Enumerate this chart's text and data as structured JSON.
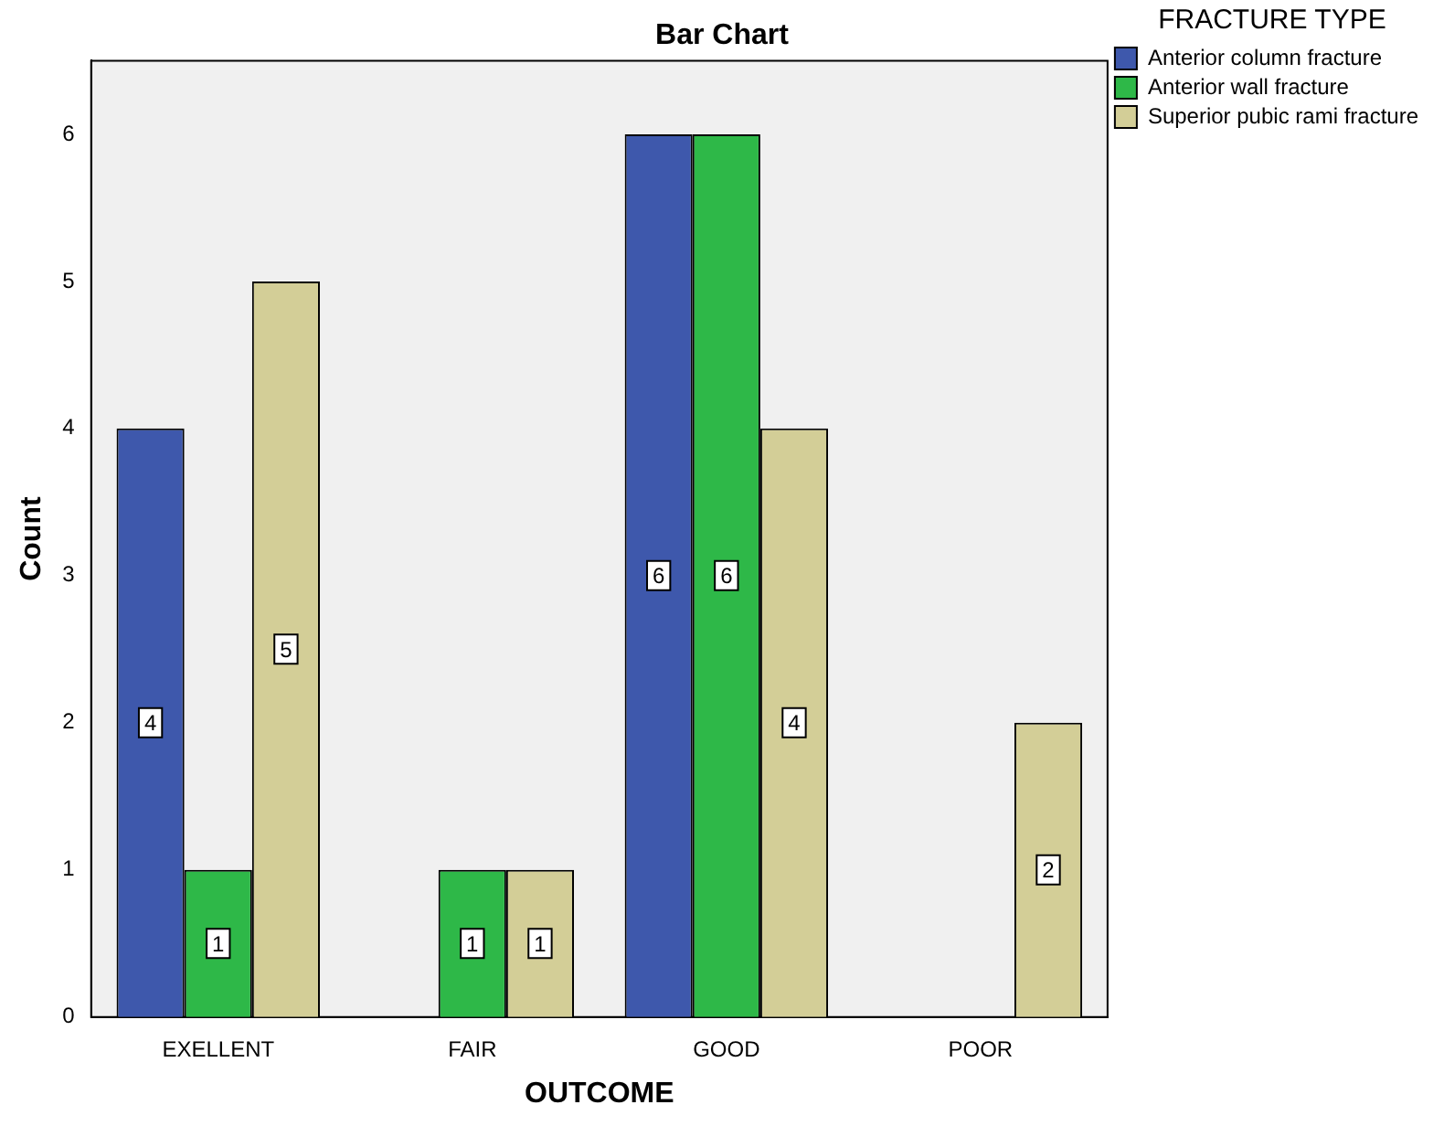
{
  "chart_data": {
    "type": "bar",
    "title": "Bar Chart",
    "xlabel": "OUTCOME",
    "ylabel": "Count",
    "legend_title": "FRACTURE TYPE",
    "categories": [
      "EXELLENT",
      "FAIR",
      "GOOD",
      "POOR"
    ],
    "series": [
      {
        "name": "Anterior column fracture",
        "color": "#3e58ac",
        "values": [
          4,
          null,
          6,
          null
        ]
      },
      {
        "name": "Anterior wall fracture",
        "color": "#2eb848",
        "values": [
          1,
          1,
          6,
          null
        ]
      },
      {
        "name": "Superior pubic rami fracture",
        "color": "#d3ce97",
        "values": [
          5,
          1,
          4,
          2
        ]
      }
    ],
    "ylim": [
      0,
      6.5
    ],
    "yticks": [
      0,
      1,
      2,
      3,
      4,
      5,
      6
    ],
    "grid": false,
    "legend": "top right",
    "data_labels": true
  }
}
